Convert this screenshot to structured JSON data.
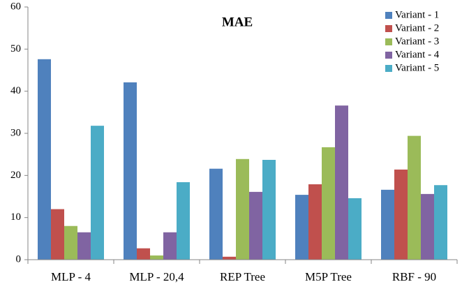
{
  "chart_data": {
    "type": "bar",
    "title": "MAE",
    "categories": [
      "MLP - 4",
      "MLP - 20,4",
      "REP Tree",
      "M5P Tree",
      "RBF - 90"
    ],
    "series": [
      {
        "name": "Variant - 1",
        "color": "#4f81bd",
        "values": [
          47.6,
          42.1,
          21.6,
          15.4,
          16.6
        ]
      },
      {
        "name": "Variant - 2",
        "color": "#c0504d",
        "values": [
          12,
          2.7,
          0.7,
          17.9,
          21.4
        ]
      },
      {
        "name": "Variant - 3",
        "color": "#9bbb59",
        "values": [
          8,
          1,
          23.9,
          26.7,
          29.4
        ]
      },
      {
        "name": "Variant - 4",
        "color": "#8064a2",
        "values": [
          6.5,
          6.5,
          16.1,
          36.6,
          15.6
        ]
      },
      {
        "name": "Variant - 5",
        "color": "#4bacc6",
        "values": [
          31.8,
          18.4,
          23.7,
          14.6,
          17.7
        ]
      }
    ],
    "ylim": [
      0,
      60
    ],
    "yticks": [
      0,
      10,
      20,
      30,
      40,
      50,
      60
    ],
    "grid": false,
    "legend": "top-right"
  }
}
